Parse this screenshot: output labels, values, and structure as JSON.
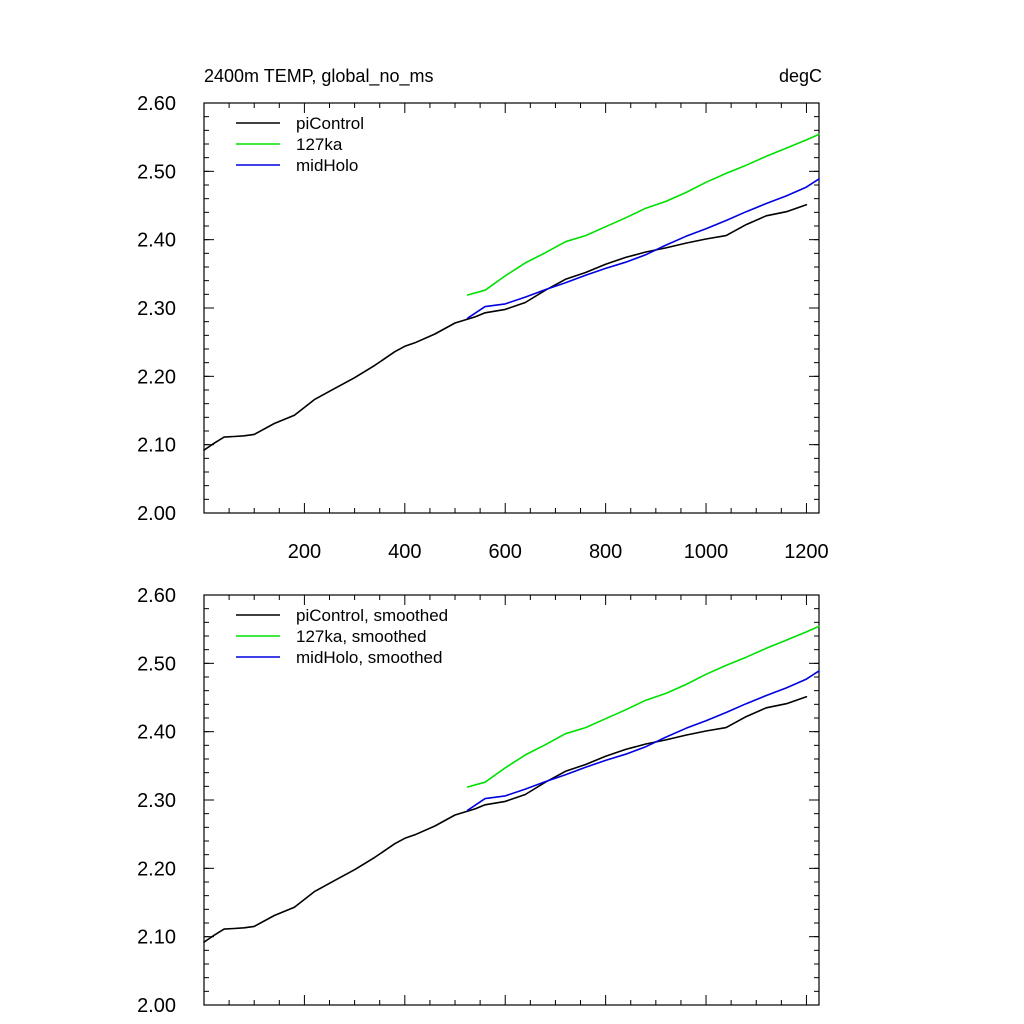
{
  "chart_data": [
    {
      "type": "line",
      "title_left": "2400m TEMP, global_no_ms",
      "title_right": "degC",
      "xlim": [
        0,
        1225
      ],
      "ylim": [
        2.0,
        2.6
      ],
      "x_ticks": [
        200,
        400,
        600,
        800,
        1000,
        1200
      ],
      "x_tick_labels": [
        "200",
        "400",
        "600",
        "800",
        "1000",
        "1200"
      ],
      "y_ticks": [
        2.0,
        2.1,
        2.2,
        2.3,
        2.4,
        2.5,
        2.6
      ],
      "y_tick_labels": [
        "2.00",
        "2.10",
        "2.20",
        "2.30",
        "2.40",
        "2.50",
        "2.60"
      ],
      "legend_position": "top-left",
      "series": [
        {
          "name": "piControl",
          "color": "#000000",
          "x": [
            0,
            20,
            40,
            60,
            80,
            100,
            140,
            180,
            220,
            260,
            300,
            340,
            380,
            400,
            420,
            460,
            500,
            540,
            560,
            600,
            640,
            680,
            720,
            760,
            800,
            840,
            880,
            920,
            960,
            1000,
            1040,
            1080,
            1120,
            1160,
            1200
          ],
          "y": [
            2.092,
            2.102,
            2.111,
            2.112,
            2.113,
            2.115,
            2.131,
            2.143,
            2.166,
            2.182,
            2.198,
            2.216,
            2.236,
            2.244,
            2.249,
            2.262,
            2.278,
            2.287,
            2.293,
            2.298,
            2.308,
            2.326,
            2.342,
            2.352,
            2.364,
            2.374,
            2.382,
            2.388,
            2.395,
            2.401,
            2.406,
            2.422,
            2.435,
            2.441,
            2.451
          ]
        },
        {
          "name": "127ka",
          "color": "#00e000",
          "x": [
            525,
            560,
            600,
            640,
            680,
            720,
            760,
            800,
            840,
            880,
            920,
            960,
            1000,
            1040,
            1080,
            1120,
            1160,
            1200,
            1225
          ],
          "y": [
            2.319,
            2.326,
            2.347,
            2.366,
            2.381,
            2.397,
            2.406,
            2.419,
            2.432,
            2.446,
            2.456,
            2.469,
            2.484,
            2.497,
            2.509,
            2.522,
            2.534,
            2.546,
            2.554
          ]
        },
        {
          "name": "midHolo",
          "color": "#0000e0",
          "x": [
            525,
            560,
            600,
            640,
            680,
            720,
            760,
            800,
            840,
            880,
            920,
            960,
            1000,
            1040,
            1080,
            1120,
            1160,
            1200,
            1225
          ],
          "y": [
            2.285,
            2.302,
            2.306,
            2.316,
            2.327,
            2.337,
            2.348,
            2.358,
            2.367,
            2.378,
            2.392,
            2.405,
            2.416,
            2.428,
            2.441,
            2.453,
            2.464,
            2.477,
            2.489
          ]
        }
      ]
    },
    {
      "type": "line",
      "title_left": "",
      "title_right": "",
      "xlim": [
        0,
        1225
      ],
      "ylim": [
        2.0,
        2.6
      ],
      "x_ticks": [
        200,
        400,
        600,
        800,
        1000,
        1200
      ],
      "x_tick_labels": [],
      "y_ticks": [
        2.0,
        2.1,
        2.2,
        2.3,
        2.4,
        2.5,
        2.6
      ],
      "y_tick_labels": [
        "2.00",
        "2.10",
        "2.20",
        "2.30",
        "2.40",
        "2.50",
        "2.60"
      ],
      "legend_position": "top-left",
      "series": [
        {
          "name": "piControl, smoothed",
          "color": "#000000",
          "x": [
            0,
            20,
            40,
            60,
            80,
            100,
            140,
            180,
            220,
            260,
            300,
            340,
            380,
            400,
            420,
            460,
            500,
            540,
            560,
            600,
            640,
            680,
            720,
            760,
            800,
            840,
            880,
            920,
            960,
            1000,
            1040,
            1080,
            1120,
            1160,
            1200
          ],
          "y": [
            2.092,
            2.102,
            2.111,
            2.112,
            2.113,
            2.115,
            2.131,
            2.143,
            2.166,
            2.182,
            2.198,
            2.216,
            2.236,
            2.244,
            2.249,
            2.262,
            2.278,
            2.287,
            2.293,
            2.298,
            2.308,
            2.326,
            2.342,
            2.352,
            2.364,
            2.374,
            2.382,
            2.388,
            2.395,
            2.401,
            2.406,
            2.422,
            2.435,
            2.441,
            2.451
          ]
        },
        {
          "name": "127ka, smoothed",
          "color": "#00e000",
          "x": [
            525,
            560,
            600,
            640,
            680,
            720,
            760,
            800,
            840,
            880,
            920,
            960,
            1000,
            1040,
            1080,
            1120,
            1160,
            1200,
            1225
          ],
          "y": [
            2.319,
            2.326,
            2.347,
            2.366,
            2.381,
            2.397,
            2.406,
            2.419,
            2.432,
            2.446,
            2.456,
            2.469,
            2.484,
            2.497,
            2.509,
            2.522,
            2.534,
            2.546,
            2.554
          ]
        },
        {
          "name": "midHolo, smoothed",
          "color": "#0000e0",
          "x": [
            525,
            560,
            600,
            640,
            680,
            720,
            760,
            800,
            840,
            880,
            920,
            960,
            1000,
            1040,
            1080,
            1120,
            1160,
            1200,
            1225
          ],
          "y": [
            2.285,
            2.302,
            2.306,
            2.316,
            2.327,
            2.337,
            2.348,
            2.358,
            2.367,
            2.378,
            2.392,
            2.405,
            2.416,
            2.428,
            2.441,
            2.453,
            2.464,
            2.477,
            2.489
          ]
        }
      ]
    }
  ]
}
